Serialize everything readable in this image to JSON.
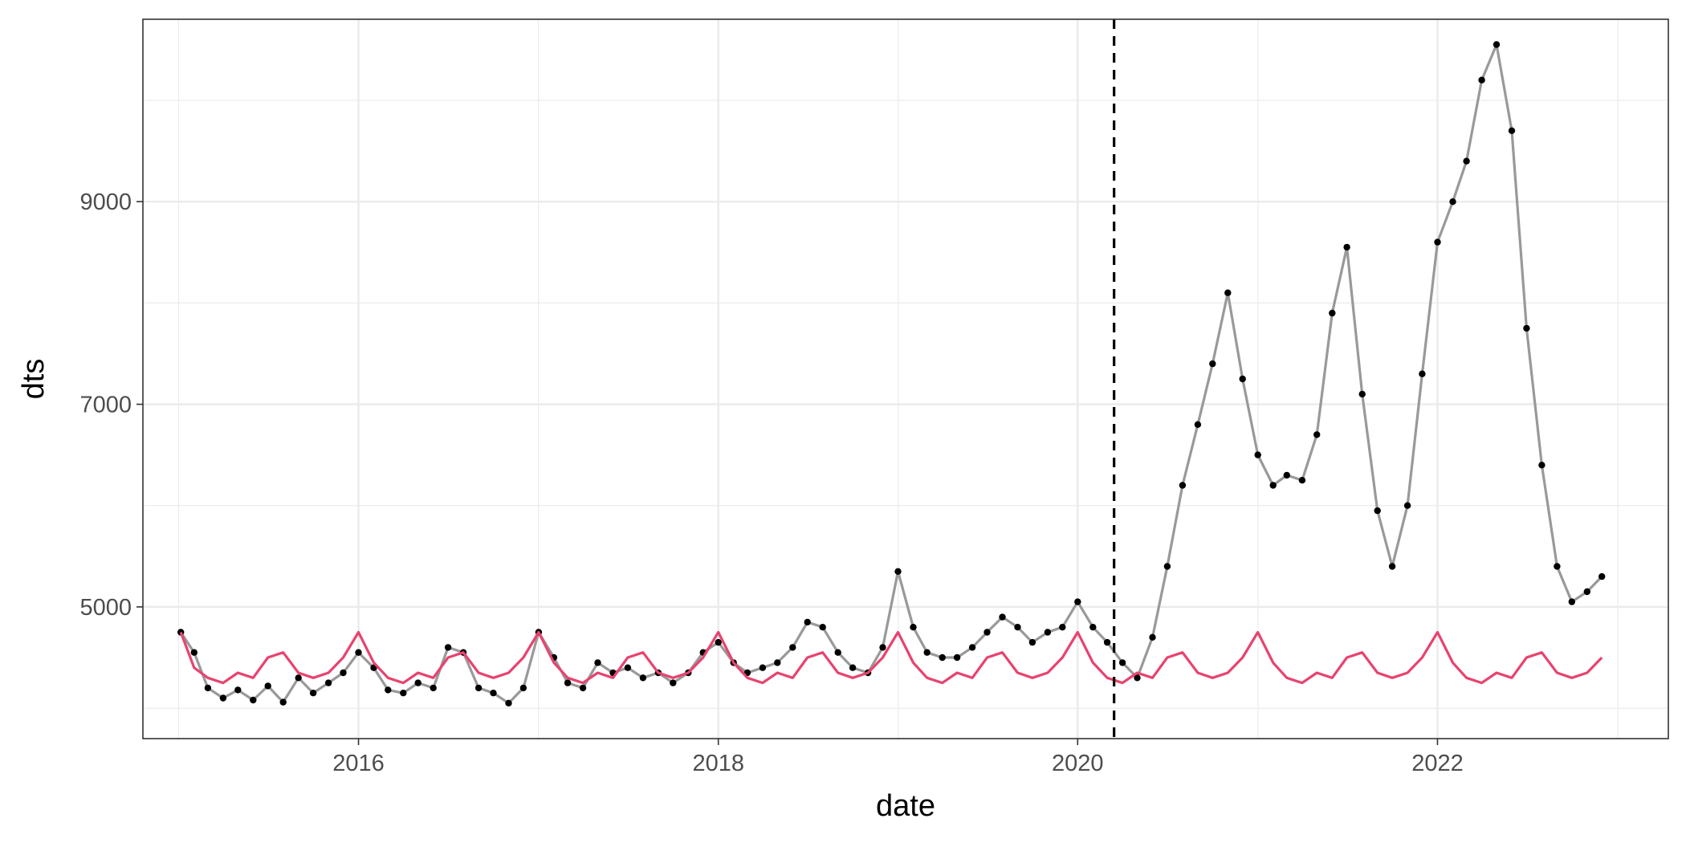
{
  "chart_data": {
    "type": "line",
    "title": "",
    "xlabel": "date",
    "ylabel": "dts",
    "xlim": [
      "2014-10-20",
      "2023-04-15"
    ],
    "ylim": [
      3700,
      10800
    ],
    "x_ticks": [
      "2016-01-01",
      "2018-01-01",
      "2020-01-01",
      "2022-01-01"
    ],
    "x_tick_labels": [
      "2016",
      "2018",
      "2020",
      "2022"
    ],
    "y_ticks": [
      5000,
      7000,
      9000
    ],
    "y_tick_labels": [
      "5000",
      "7000",
      "9000"
    ],
    "grid": true,
    "legend": "none",
    "vline": {
      "x": "2020-03-15",
      "style": "dashed"
    },
    "series": [
      {
        "color": "#000000",
        "line_color": "#999999",
        "marker": "point",
        "points": [
          [
            "2015-01-05",
            4750
          ],
          [
            "2015-02-01",
            4550
          ],
          [
            "2015-03-01",
            4200
          ],
          [
            "2015-04-01",
            4100
          ],
          [
            "2015-05-01",
            4180
          ],
          [
            "2015-06-01",
            4080
          ],
          [
            "2015-07-01",
            4220
          ],
          [
            "2015-08-01",
            4060
          ],
          [
            "2015-09-01",
            4300
          ],
          [
            "2015-10-01",
            4150
          ],
          [
            "2015-11-01",
            4250
          ],
          [
            "2015-12-01",
            4350
          ],
          [
            "2016-01-01",
            4550
          ],
          [
            "2016-02-01",
            4400
          ],
          [
            "2016-03-01",
            4180
          ],
          [
            "2016-04-01",
            4150
          ],
          [
            "2016-05-01",
            4250
          ],
          [
            "2016-06-01",
            4200
          ],
          [
            "2016-07-01",
            4600
          ],
          [
            "2016-08-01",
            4550
          ],
          [
            "2016-09-01",
            4200
          ],
          [
            "2016-10-01",
            4150
          ],
          [
            "2016-11-01",
            4050
          ],
          [
            "2016-12-01",
            4200
          ],
          [
            "2017-01-01",
            4750
          ],
          [
            "2017-02-01",
            4500
          ],
          [
            "2017-03-01",
            4250
          ],
          [
            "2017-04-01",
            4200
          ],
          [
            "2017-05-01",
            4450
          ],
          [
            "2017-06-01",
            4350
          ],
          [
            "2017-07-01",
            4400
          ],
          [
            "2017-08-01",
            4300
          ],
          [
            "2017-09-01",
            4350
          ],
          [
            "2017-10-01",
            4250
          ],
          [
            "2017-11-01",
            4350
          ],
          [
            "2017-12-01",
            4550
          ],
          [
            "2018-01-01",
            4650
          ],
          [
            "2018-02-01",
            4450
          ],
          [
            "2018-03-01",
            4350
          ],
          [
            "2018-04-01",
            4400
          ],
          [
            "2018-05-01",
            4450
          ],
          [
            "2018-06-01",
            4600
          ],
          [
            "2018-07-01",
            4850
          ],
          [
            "2018-08-01",
            4800
          ],
          [
            "2018-09-01",
            4550
          ],
          [
            "2018-10-01",
            4400
          ],
          [
            "2018-11-01",
            4350
          ],
          [
            "2018-12-01",
            4600
          ],
          [
            "2019-01-01",
            5350
          ],
          [
            "2019-02-01",
            4800
          ],
          [
            "2019-03-01",
            4550
          ],
          [
            "2019-04-01",
            4500
          ],
          [
            "2019-05-01",
            4500
          ],
          [
            "2019-06-01",
            4600
          ],
          [
            "2019-07-01",
            4750
          ],
          [
            "2019-08-01",
            4900
          ],
          [
            "2019-09-01",
            4800
          ],
          [
            "2019-10-01",
            4650
          ],
          [
            "2019-11-01",
            4750
          ],
          [
            "2019-12-01",
            4800
          ],
          [
            "2020-01-01",
            5050
          ],
          [
            "2020-02-01",
            4800
          ],
          [
            "2020-03-01",
            4650
          ],
          [
            "2020-04-01",
            4450
          ],
          [
            "2020-05-01",
            4300
          ],
          [
            "2020-06-01",
            4700
          ],
          [
            "2020-07-01",
            5400
          ],
          [
            "2020-08-01",
            6200
          ],
          [
            "2020-09-01",
            6800
          ],
          [
            "2020-10-01",
            7400
          ],
          [
            "2020-11-01",
            8100
          ],
          [
            "2020-12-01",
            7250
          ],
          [
            "2021-01-01",
            6500
          ],
          [
            "2021-02-01",
            6200
          ],
          [
            "2021-03-01",
            6300
          ],
          [
            "2021-04-01",
            6250
          ],
          [
            "2021-05-01",
            6700
          ],
          [
            "2021-06-01",
            7900
          ],
          [
            "2021-07-01",
            8550
          ],
          [
            "2021-08-01",
            7100
          ],
          [
            "2021-09-01",
            5950
          ],
          [
            "2021-10-01",
            5400
          ],
          [
            "2021-11-01",
            6000
          ],
          [
            "2021-12-01",
            7300
          ],
          [
            "2022-01-01",
            8600
          ],
          [
            "2022-02-01",
            9000
          ],
          [
            "2022-03-01",
            9400
          ],
          [
            "2022-04-01",
            10200
          ],
          [
            "2022-05-01",
            10550
          ],
          [
            "2022-06-01",
            9700
          ],
          [
            "2022-07-01",
            7750
          ],
          [
            "2022-08-01",
            6400
          ],
          [
            "2022-09-01",
            5400
          ],
          [
            "2022-10-01",
            5050
          ],
          [
            "2022-11-01",
            5150
          ],
          [
            "2022-12-01",
            5300
          ]
        ]
      },
      {
        "color": "#E8436F",
        "marker": "none",
        "points": [
          [
            "2015-01-05",
            4750
          ],
          [
            "2015-02-01",
            4400
          ],
          [
            "2015-03-01",
            4300
          ],
          [
            "2015-04-01",
            4250
          ],
          [
            "2015-05-01",
            4350
          ],
          [
            "2015-06-01",
            4300
          ],
          [
            "2015-07-01",
            4500
          ],
          [
            "2015-08-01",
            4550
          ],
          [
            "2015-09-01",
            4350
          ],
          [
            "2015-10-01",
            4300
          ],
          [
            "2015-11-01",
            4350
          ],
          [
            "2015-12-01",
            4500
          ],
          [
            "2016-01-01",
            4750
          ],
          [
            "2016-02-01",
            4450
          ],
          [
            "2016-03-01",
            4300
          ],
          [
            "2016-04-01",
            4250
          ],
          [
            "2016-05-01",
            4350
          ],
          [
            "2016-06-01",
            4300
          ],
          [
            "2016-07-01",
            4500
          ],
          [
            "2016-08-01",
            4550
          ],
          [
            "2016-09-01",
            4350
          ],
          [
            "2016-10-01",
            4300
          ],
          [
            "2016-11-01",
            4350
          ],
          [
            "2016-12-01",
            4500
          ],
          [
            "2017-01-01",
            4750
          ],
          [
            "2017-02-01",
            4450
          ],
          [
            "2017-03-01",
            4300
          ],
          [
            "2017-04-01",
            4250
          ],
          [
            "2017-05-01",
            4350
          ],
          [
            "2017-06-01",
            4300
          ],
          [
            "2017-07-01",
            4500
          ],
          [
            "2017-08-01",
            4550
          ],
          [
            "2017-09-01",
            4350
          ],
          [
            "2017-10-01",
            4300
          ],
          [
            "2017-11-01",
            4350
          ],
          [
            "2017-12-01",
            4500
          ],
          [
            "2018-01-01",
            4750
          ],
          [
            "2018-02-01",
            4450
          ],
          [
            "2018-03-01",
            4300
          ],
          [
            "2018-04-01",
            4250
          ],
          [
            "2018-05-01",
            4350
          ],
          [
            "2018-06-01",
            4300
          ],
          [
            "2018-07-01",
            4500
          ],
          [
            "2018-08-01",
            4550
          ],
          [
            "2018-09-01",
            4350
          ],
          [
            "2018-10-01",
            4300
          ],
          [
            "2018-11-01",
            4350
          ],
          [
            "2018-12-01",
            4500
          ],
          [
            "2019-01-01",
            4750
          ],
          [
            "2019-02-01",
            4450
          ],
          [
            "2019-03-01",
            4300
          ],
          [
            "2019-04-01",
            4250
          ],
          [
            "2019-05-01",
            4350
          ],
          [
            "2019-06-01",
            4300
          ],
          [
            "2019-07-01",
            4500
          ],
          [
            "2019-08-01",
            4550
          ],
          [
            "2019-09-01",
            4350
          ],
          [
            "2019-10-01",
            4300
          ],
          [
            "2019-11-01",
            4350
          ],
          [
            "2019-12-01",
            4500
          ],
          [
            "2020-01-01",
            4750
          ],
          [
            "2020-02-01",
            4450
          ],
          [
            "2020-03-01",
            4300
          ],
          [
            "2020-04-01",
            4250
          ],
          [
            "2020-05-01",
            4350
          ],
          [
            "2020-06-01",
            4300
          ],
          [
            "2020-07-01",
            4500
          ],
          [
            "2020-08-01",
            4550
          ],
          [
            "2020-09-01",
            4350
          ],
          [
            "2020-10-01",
            4300
          ],
          [
            "2020-11-01",
            4350
          ],
          [
            "2020-12-01",
            4500
          ],
          [
            "2021-01-01",
            4750
          ],
          [
            "2021-02-01",
            4450
          ],
          [
            "2021-03-01",
            4300
          ],
          [
            "2021-04-01",
            4250
          ],
          [
            "2021-05-01",
            4350
          ],
          [
            "2021-06-01",
            4300
          ],
          [
            "2021-07-01",
            4500
          ],
          [
            "2021-08-01",
            4550
          ],
          [
            "2021-09-01",
            4350
          ],
          [
            "2021-10-01",
            4300
          ],
          [
            "2021-11-01",
            4350
          ],
          [
            "2021-12-01",
            4500
          ],
          [
            "2022-01-01",
            4750
          ],
          [
            "2022-02-01",
            4450
          ],
          [
            "2022-03-01",
            4300
          ],
          [
            "2022-04-01",
            4250
          ],
          [
            "2022-05-01",
            4350
          ],
          [
            "2022-06-01",
            4300
          ],
          [
            "2022-07-01",
            4500
          ],
          [
            "2022-08-01",
            4550
          ],
          [
            "2022-09-01",
            4350
          ],
          [
            "2022-10-01",
            4300
          ],
          [
            "2022-11-01",
            4350
          ],
          [
            "2022-12-01",
            4500
          ]
        ]
      }
    ]
  }
}
